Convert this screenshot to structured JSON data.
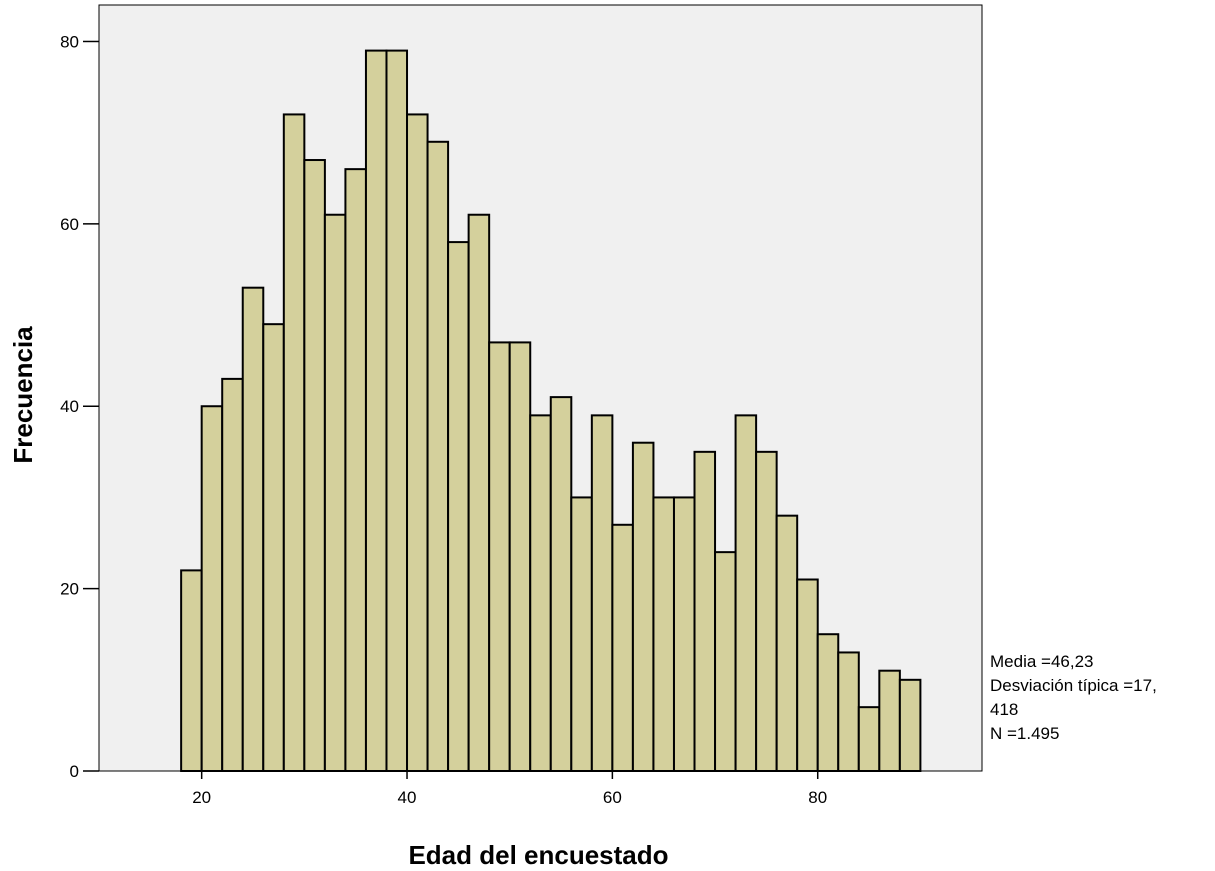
{
  "chart_data": {
    "type": "bar",
    "xlabel": "Edad del encuestado",
    "ylabel": "Frecuencia",
    "xlim": [
      10,
      96
    ],
    "ylim": [
      0,
      84
    ],
    "x_ticks": [
      20,
      40,
      60,
      80
    ],
    "y_ticks": [
      0,
      20,
      40,
      60,
      80
    ],
    "bin_width": 2,
    "bin_start": 18,
    "bins": [
      {
        "x0": 18,
        "x1": 20,
        "value": 22
      },
      {
        "x0": 20,
        "x1": 22,
        "value": 40
      },
      {
        "x0": 22,
        "x1": 24,
        "value": 43
      },
      {
        "x0": 24,
        "x1": 26,
        "value": 53
      },
      {
        "x0": 26,
        "x1": 28,
        "value": 49
      },
      {
        "x0": 28,
        "x1": 30,
        "value": 72
      },
      {
        "x0": 30,
        "x1": 32,
        "value": 67
      },
      {
        "x0": 32,
        "x1": 34,
        "value": 61
      },
      {
        "x0": 34,
        "x1": 36,
        "value": 66
      },
      {
        "x0": 36,
        "x1": 38,
        "value": 79
      },
      {
        "x0": 38,
        "x1": 40,
        "value": 79
      },
      {
        "x0": 40,
        "x1": 42,
        "value": 72
      },
      {
        "x0": 42,
        "x1": 44,
        "value": 69
      },
      {
        "x0": 44,
        "x1": 46,
        "value": 58
      },
      {
        "x0": 46,
        "x1": 48,
        "value": 61
      },
      {
        "x0": 48,
        "x1": 50,
        "value": 47
      },
      {
        "x0": 50,
        "x1": 52,
        "value": 47
      },
      {
        "x0": 52,
        "x1": 54,
        "value": 39
      },
      {
        "x0": 54,
        "x1": 56,
        "value": 41
      },
      {
        "x0": 56,
        "x1": 58,
        "value": 30
      },
      {
        "x0": 58,
        "x1": 60,
        "value": 39
      },
      {
        "x0": 60,
        "x1": 62,
        "value": 27
      },
      {
        "x0": 62,
        "x1": 64,
        "value": 36
      },
      {
        "x0": 64,
        "x1": 66,
        "value": 30
      },
      {
        "x0": 66,
        "x1": 68,
        "value": 30
      },
      {
        "x0": 68,
        "x1": 70,
        "value": 35
      },
      {
        "x0": 70,
        "x1": 72,
        "value": 24
      },
      {
        "x0": 72,
        "x1": 74,
        "value": 39
      },
      {
        "x0": 74,
        "x1": 76,
        "value": 35
      },
      {
        "x0": 76,
        "x1": 78,
        "value": 28
      },
      {
        "x0": 78,
        "x1": 80,
        "value": 21
      },
      {
        "x0": 80,
        "x1": 82,
        "value": 15
      },
      {
        "x0": 82,
        "x1": 84,
        "value": 13
      },
      {
        "x0": 84,
        "x1": 86,
        "value": 7
      },
      {
        "x0": 86,
        "x1": 88,
        "value": 11
      },
      {
        "x0": 88,
        "x1": 90,
        "value": 10
      }
    ],
    "grid": false,
    "colors": {
      "bar_fill": "#d4d09c",
      "bar_stroke": "#000000",
      "plot_background": "#f0f0f0"
    },
    "stats": {
      "mean": "Media =46,23",
      "sd_line1": "Desviación típica =17,",
      "sd_line2": "418",
      "n": "N =1.495"
    }
  }
}
